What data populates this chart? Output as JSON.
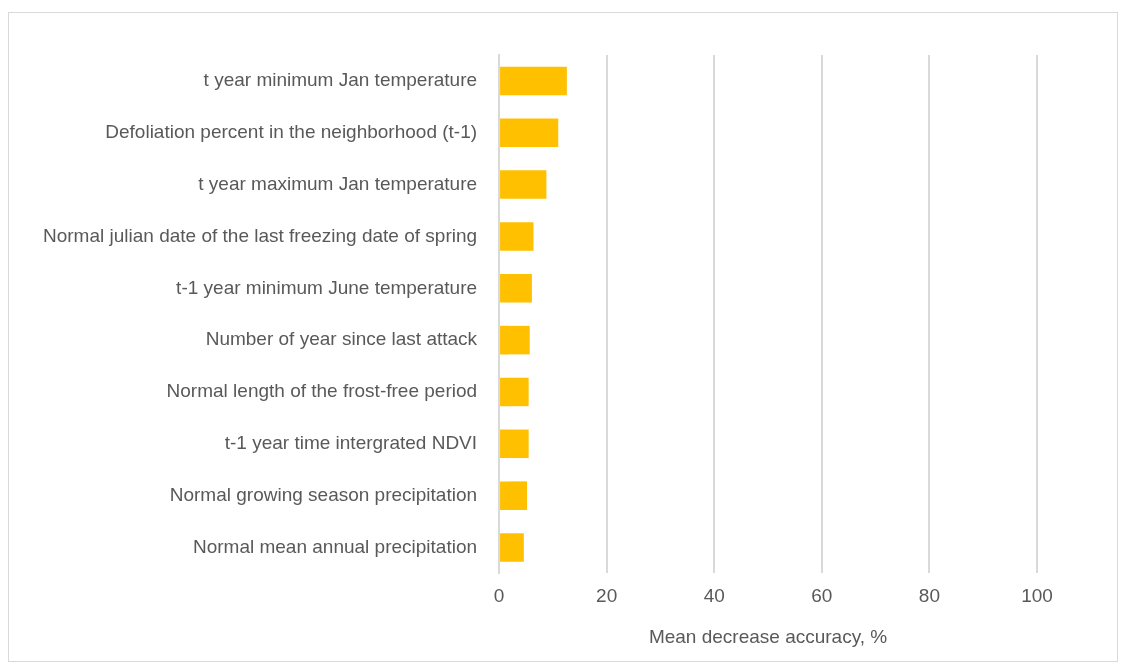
{
  "chart_data": {
    "type": "bar",
    "orientation": "horizontal",
    "categories": [
      "t year minimum Jan temperature",
      "Defoliation percent in the neighborhood (t-1)",
      "t year maximum Jan temperature",
      "Normal julian date of the last freezing date of spring",
      "t-1 year minimum June temperature",
      "Number of year since last attack",
      "Normal length of the frost-free period",
      "t-1 year time intergrated NDVI",
      "Normal growing season precipitation",
      "Normal mean annual precipitation"
    ],
    "values": [
      12.6,
      11.0,
      8.8,
      6.4,
      6.1,
      5.7,
      5.5,
      5.5,
      5.2,
      4.6
    ],
    "color": "#ffc000",
    "xlabel": "Mean decrease accuracy, %",
    "xlim": [
      0,
      100
    ],
    "xticks": [
      0,
      20,
      40,
      60,
      80,
      100
    ],
    "grid": "x",
    "legend": false
  }
}
